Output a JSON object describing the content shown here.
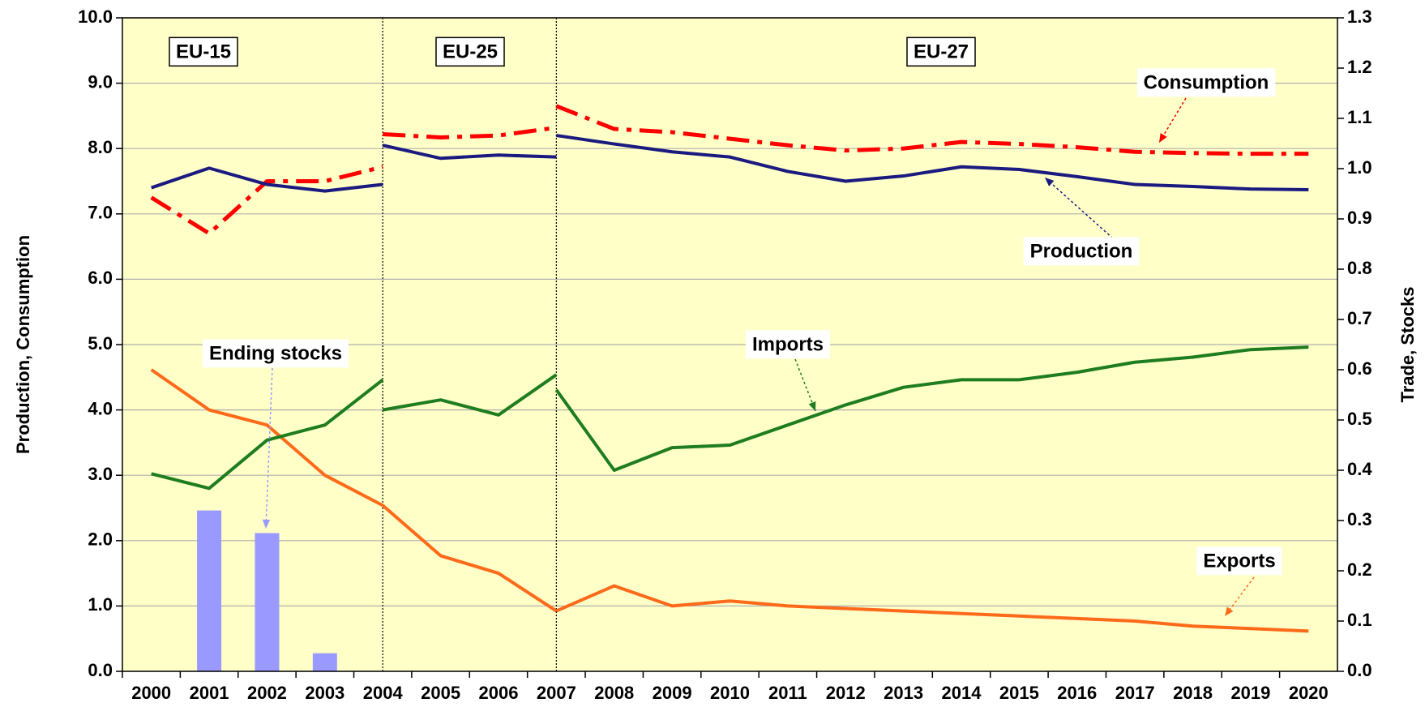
{
  "chart_data": {
    "type": "line",
    "y_label": "Production, Consumption",
    "y2_label": "Trade, Stocks",
    "periods": [
      "EU-15",
      "EU-25",
      "EU-27"
    ],
    "dividers": [
      2004,
      2007
    ],
    "x": [
      2000,
      2001,
      2002,
      2003,
      2004,
      2004,
      2004,
      2005,
      2006,
      2007,
      2007,
      2007,
      2008,
      2009,
      2010,
      2011,
      2012,
      2013,
      2014,
      2015,
      2016,
      2017,
      2018,
      2019,
      2020
    ],
    "xlim": [
      1999.5,
      2020.5
    ],
    "xticks": [
      2000,
      2001,
      2002,
      2003,
      2004,
      2005,
      2006,
      2007,
      2008,
      2009,
      2010,
      2011,
      2012,
      2013,
      2014,
      2015,
      2016,
      2017,
      2018,
      2019,
      2020
    ],
    "ylim": [
      0,
      10
    ],
    "yticks": [
      {
        "value": 0,
        "label": "0.0"
      },
      {
        "value": 1,
        "label": "1.0"
      },
      {
        "value": 2,
        "label": "2.0"
      },
      {
        "value": 3,
        "label": "3.0"
      },
      {
        "value": 4,
        "label": "4.0"
      },
      {
        "value": 5,
        "label": "5.0"
      },
      {
        "value": 6,
        "label": "6.0"
      },
      {
        "value": 7,
        "label": "7.0"
      },
      {
        "value": 8,
        "label": "8.0"
      },
      {
        "value": 9,
        "label": "9.0"
      },
      {
        "value": 10,
        "label": "10.0"
      }
    ],
    "y2lim": [
      0,
      1.3
    ],
    "y2ticks": [
      {
        "value": 0,
        "label": "0.0"
      },
      0.1,
      0.2,
      0.3,
      0.4,
      0.5,
      0.6,
      0.7,
      0.8,
      0.9,
      {
        "value": 1,
        "label": "1.0"
      },
      1.1,
      1.2,
      1.3
    ],
    "grid": true,
    "series": [
      {
        "name": "Ending stocks",
        "type": "bar",
        "axis": "y2",
        "color": "#9999ff",
        "x": [
          2001,
          2002,
          2003
        ],
        "values": [
          0.32,
          0.275,
          0.036
        ]
      },
      {
        "name": "Exports",
        "axis": "y2",
        "color": "#ff6a1a",
        "values": [
          0.6,
          0.52,
          0.49,
          0.39,
          0.33,
          null,
          0.33,
          0.23,
          0.195,
          0.12,
          null,
          0.12,
          0.17,
          0.13,
          0.14,
          0.13,
          0.125,
          0.12,
          0.115,
          0.11,
          0.105,
          0.1,
          0.09,
          0.085,
          0.08
        ]
      },
      {
        "name": "Imports",
        "axis": "y2",
        "color": "#1e7d1e",
        "values": [
          0.393,
          0.364,
          0.46,
          0.49,
          0.58,
          null,
          0.52,
          0.54,
          0.51,
          0.59,
          null,
          0.56,
          0.4,
          0.445,
          0.45,
          0.49,
          0.53,
          0.565,
          0.58,
          0.58,
          0.595,
          0.615,
          0.625,
          0.64,
          0.645
        ]
      },
      {
        "name": "Consumption",
        "color": "#ff0000",
        "line_style": "dash-dot",
        "values": [
          7.25,
          6.7,
          7.5,
          7.5,
          7.72,
          null,
          8.22,
          8.17,
          8.2,
          8.32,
          null,
          8.65,
          8.3,
          8.25,
          8.15,
          8.05,
          7.97,
          8.0,
          8.1,
          8.07,
          8.02,
          7.95,
          7.93,
          7.92,
          7.92
        ]
      },
      {
        "name": "Production",
        "color": "#1a1a80",
        "values": [
          7.4,
          7.7,
          7.45,
          7.35,
          7.45,
          null,
          8.05,
          7.85,
          7.9,
          7.87,
          null,
          8.2,
          8.07,
          7.95,
          7.87,
          7.65,
          7.5,
          7.58,
          7.72,
          7.68,
          7.57,
          7.45,
          7.42,
          7.38,
          7.37
        ]
      }
    ]
  }
}
